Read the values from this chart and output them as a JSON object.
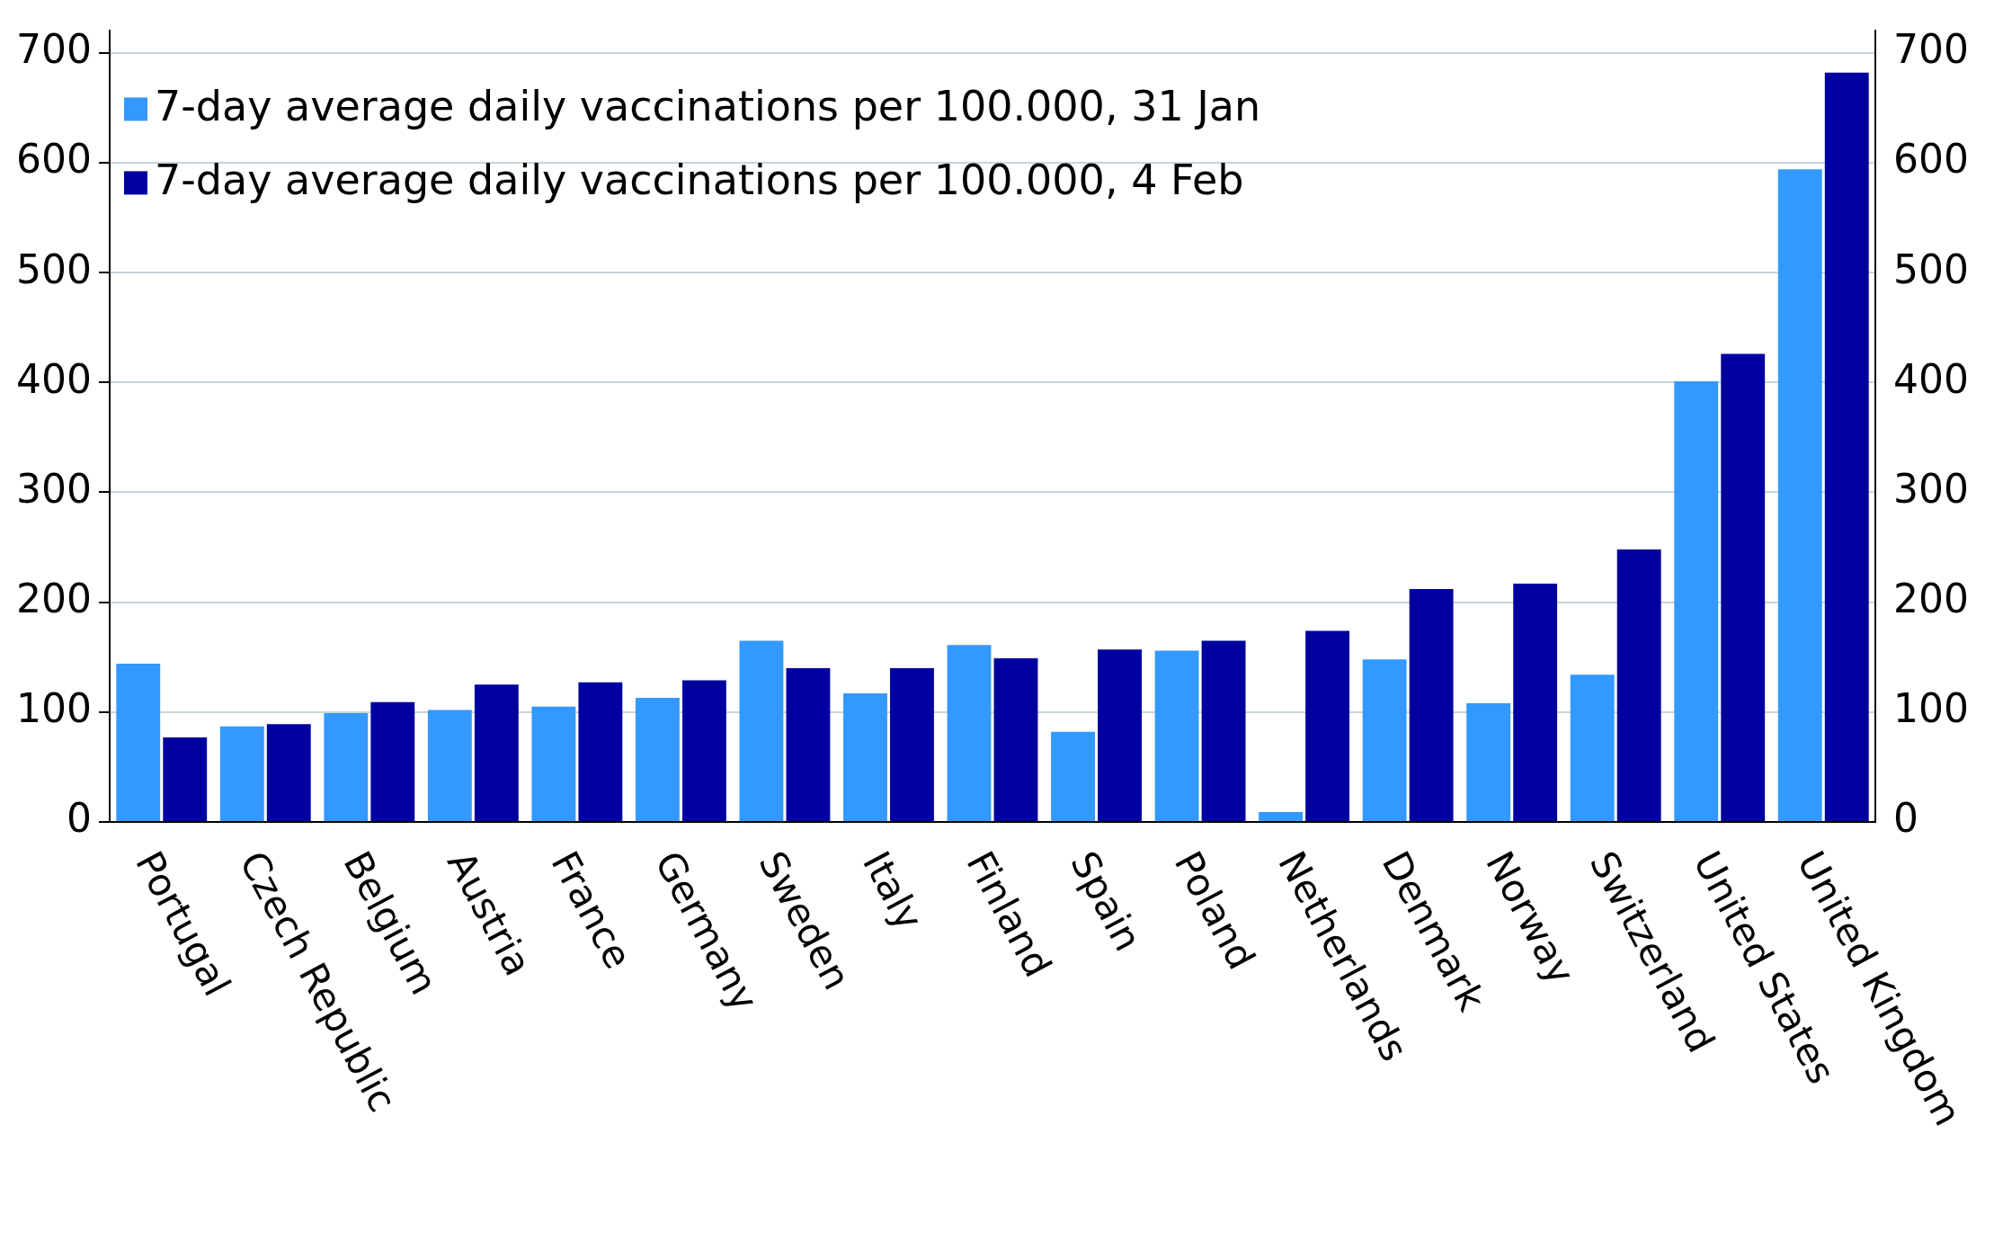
{
  "chart_data": {
    "type": "bar",
    "categories": [
      "Portugal",
      "Czech Republic",
      "Belgium",
      "Austria",
      "France",
      "Germany",
      "Sweden",
      "Italy",
      "Finland",
      "Spain",
      "Poland",
      "Netherlands",
      "Denmark",
      "Norway",
      "Switzerland",
      "United States",
      "United Kingdom"
    ],
    "series": [
      {
        "name": "7-day average daily vaccinations per 100.000, 31 Jan",
        "color": "#3399ff",
        "values": [
          144,
          87,
          99,
          102,
          105,
          113,
          165,
          117,
          161,
          82,
          156,
          9,
          148,
          108,
          134,
          401,
          594
        ]
      },
      {
        "name": "7-day average daily vaccinations per 100.000, 4 Feb",
        "color": "#0000a0",
        "values": [
          77,
          89,
          109,
          125,
          127,
          129,
          140,
          140,
          149,
          157,
          165,
          174,
          212,
          217,
          248,
          426,
          682
        ]
      }
    ],
    "ylim": [
      0,
      720
    ],
    "yticks": [
      0,
      100,
      200,
      300,
      400,
      500,
      600,
      700
    ],
    "y2lim": [
      0,
      720
    ],
    "y2ticks": [
      0,
      100,
      200,
      300,
      400,
      500,
      600,
      700
    ],
    "grid": "y",
    "legend": "top left"
  }
}
